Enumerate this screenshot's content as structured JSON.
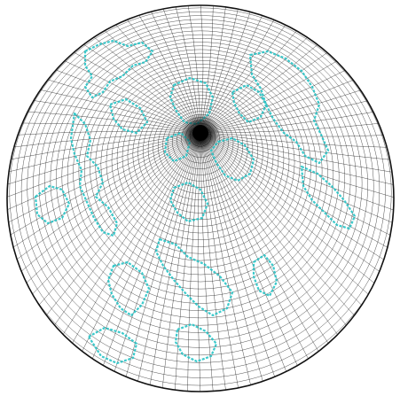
{
  "figure": {
    "kind": "polar-projected-globe-mesh",
    "view": "north-pole",
    "projection": "orthographic",
    "background_color": "#ffffff",
    "mesh_color": "#1a1a1a",
    "outline_color": "#111111",
    "coastline_color": "#27c3c5",
    "pole_fill_color": "#000000",
    "grid": {
      "latitude_rings": 40,
      "longitude_spokes": 96
    },
    "labels": []
  }
}
